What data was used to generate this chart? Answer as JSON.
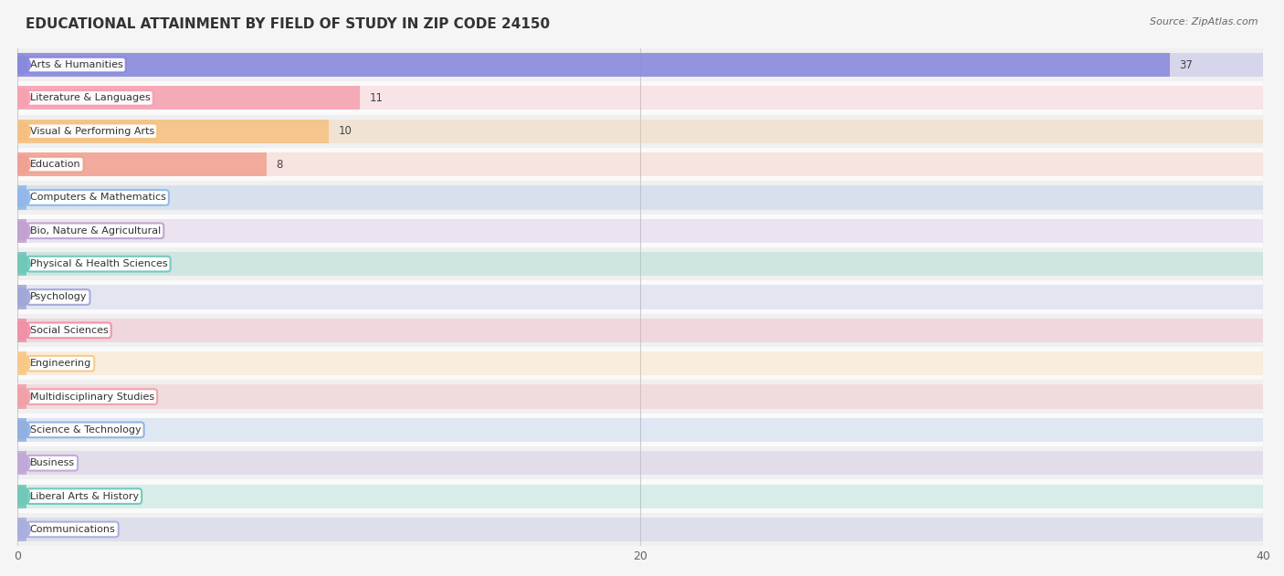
{
  "title": "EDUCATIONAL ATTAINMENT BY FIELD OF STUDY IN ZIP CODE 24150",
  "source": "Source: ZipAtlas.com",
  "categories": [
    "Arts & Humanities",
    "Literature & Languages",
    "Visual & Performing Arts",
    "Education",
    "Computers & Mathematics",
    "Bio, Nature & Agricultural",
    "Physical & Health Sciences",
    "Psychology",
    "Social Sciences",
    "Engineering",
    "Multidisciplinary Studies",
    "Science & Technology",
    "Business",
    "Liberal Arts & History",
    "Communications"
  ],
  "values": [
    37,
    11,
    10,
    8,
    0,
    0,
    0,
    0,
    0,
    0,
    0,
    0,
    0,
    0,
    0
  ],
  "bar_colors": [
    "#8888dd",
    "#f5a0b0",
    "#f5c080",
    "#f0a090",
    "#90b8e8",
    "#c0a0d0",
    "#70c8b8",
    "#a0a8d8",
    "#f090a8",
    "#f8c888",
    "#f0a0a8",
    "#90b0e0",
    "#c0a8d8",
    "#70c8b8",
    "#a8aedd"
  ],
  "xlim": [
    0,
    40
  ],
  "xticks": [
    0,
    20,
    40
  ],
  "background_color": "#f5f5f5",
  "title_fontsize": 11,
  "source_fontsize": 8
}
